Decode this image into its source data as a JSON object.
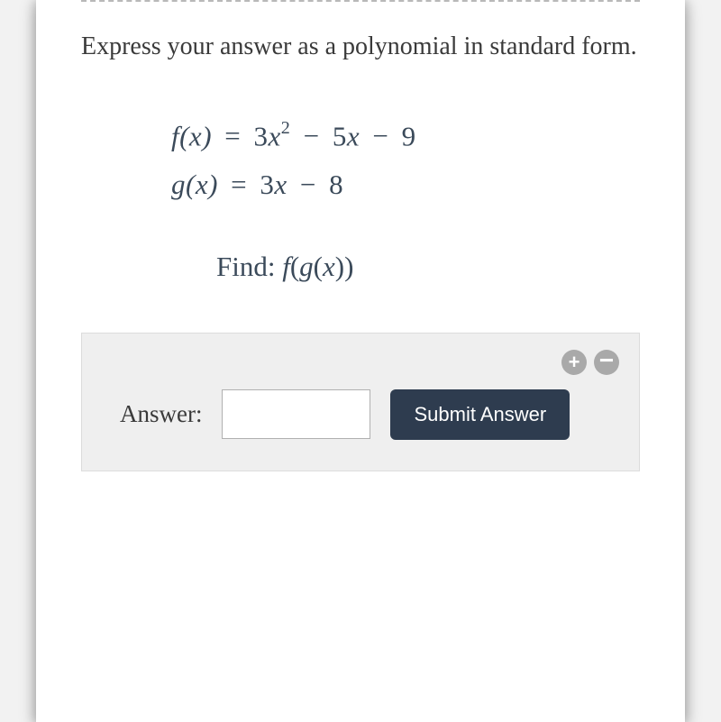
{
  "instruction": "Express your answer as a polynomial in standard form.",
  "equations": {
    "f_lhs": "f(x)",
    "f_rhs_a": "3",
    "f_rhs_x2": "x",
    "f_rhs_exp": "2",
    "f_rhs_b": "5",
    "f_rhs_bx": "x",
    "f_rhs_c": "9",
    "g_lhs": "g(x)",
    "g_rhs_a": "3",
    "g_rhs_ax": "x",
    "g_rhs_b": "8"
  },
  "find": {
    "label": "Find:",
    "expr_outer": "f",
    "expr_inner": "g",
    "expr_var": "x"
  },
  "answer": {
    "label": "Answer:",
    "value": "",
    "submit": "Submit Answer",
    "zoom_in": "+",
    "zoom_out": "−"
  },
  "colors": {
    "card_bg": "#ffffff",
    "page_bg": "#f2f2f2",
    "text": "#3a3a3a",
    "math_text": "#3b4a5a",
    "answer_bg": "#efefef",
    "submit_bg": "#2e3c4f",
    "zoom_bg": "#a9a9a9"
  }
}
